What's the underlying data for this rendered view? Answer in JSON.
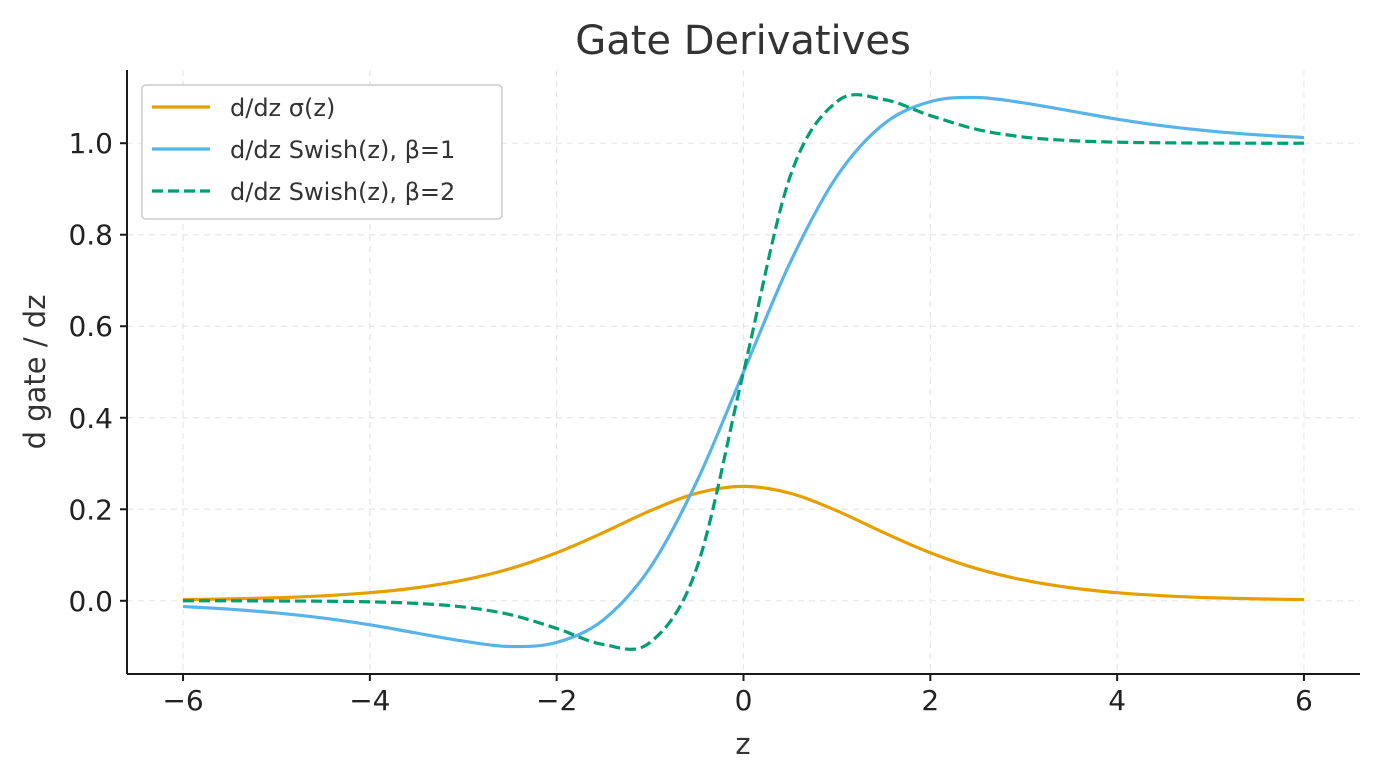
{
  "chart_data": {
    "type": "line",
    "title": "Gate Derivatives",
    "xlabel": "z",
    "ylabel": "d gate / dz",
    "xlim": [
      -6.6,
      6.6
    ],
    "ylim": [
      -0.16,
      1.16
    ],
    "xticks": [
      -6,
      -4,
      -2,
      0,
      2,
      4,
      6
    ],
    "xtick_labels": [
      "−6",
      "−4",
      "−2",
      "0",
      "2",
      "4",
      "6"
    ],
    "yticks": [
      0.0,
      0.2,
      0.4,
      0.6,
      0.8,
      1.0
    ],
    "ytick_labels": [
      "0.0",
      "0.2",
      "0.4",
      "0.6",
      "0.8",
      "1.0"
    ],
    "grid": true,
    "legend_position": "top-left",
    "x": [
      -6,
      -5.5,
      -5,
      -4.5,
      -4,
      -3.5,
      -3,
      -2.5,
      -2,
      -1.5,
      -1,
      -0.5,
      0,
      0.5,
      1,
      1.5,
      2,
      2.5,
      3,
      3.5,
      4,
      4.5,
      5,
      5.5,
      6
    ],
    "series": [
      {
        "name": "d/dz σ(z)",
        "color": "#E69F00",
        "style": "solid",
        "values": [
          0.0025,
          0.0041,
          0.0066,
          0.0109,
          0.0177,
          0.0285,
          0.0452,
          0.0701,
          0.105,
          0.1491,
          0.1966,
          0.235,
          0.25,
          0.235,
          0.1966,
          0.1491,
          0.105,
          0.0701,
          0.0452,
          0.0285,
          0.0177,
          0.0109,
          0.0066,
          0.0041,
          0.0025
        ]
      },
      {
        "name": "d/dz Swish(z), β=1",
        "color": "#56B4E9",
        "style": "solid",
        "values": [
          -0.0124,
          -0.0184,
          -0.0266,
          -0.0378,
          -0.0525,
          -0.0705,
          -0.0881,
          -0.0999,
          -0.0909,
          -0.0417,
          0.0723,
          0.2607,
          0.5,
          0.7393,
          0.9277,
          1.0417,
          1.0909,
          1.0999,
          1.0881,
          1.0705,
          1.0525,
          1.0378,
          1.0266,
          1.0184,
          1.0124
        ]
      },
      {
        "name": "d/dz Swish(z), β=2",
        "color": "#009E73",
        "style": "dashed",
        "values": [
          0.0,
          0.0,
          -0.0004,
          -0.0009,
          -0.0023,
          -0.0057,
          -0.0135,
          -0.0302,
          -0.0604,
          -0.0955,
          -0.0909,
          0.0723,
          0.5,
          0.9277,
          1.0909,
          1.0955,
          1.0604,
          1.0302,
          1.0135,
          1.0057,
          1.0023,
          1.0009,
          1.0004,
          1.0,
          1.0
        ]
      }
    ]
  }
}
